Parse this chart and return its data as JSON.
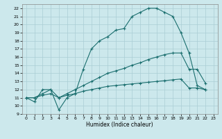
{
  "xlabel": "Humidex (Indice chaleur)",
  "bg_color": "#cce8ec",
  "grid_color": "#aacdd4",
  "line_color": "#1a6e6e",
  "xlim": [
    -0.5,
    23.5
  ],
  "ylim": [
    9,
    22.5
  ],
  "xticks": [
    0,
    1,
    2,
    3,
    4,
    5,
    6,
    7,
    8,
    9,
    10,
    11,
    12,
    13,
    14,
    15,
    16,
    17,
    18,
    19,
    20,
    21,
    22,
    23
  ],
  "yticks": [
    9,
    10,
    11,
    12,
    13,
    14,
    15,
    16,
    17,
    18,
    19,
    20,
    21,
    22
  ],
  "curve1_x": [
    0,
    1,
    2,
    3,
    4,
    5,
    6,
    7,
    8,
    9,
    10,
    11,
    12,
    13,
    14,
    15,
    16,
    17,
    18,
    19,
    20,
    21,
    22
  ],
  "curve1_y": [
    11,
    10.5,
    12,
    12,
    9.5,
    11,
    11.5,
    14.5,
    17,
    18,
    18.5,
    19.3,
    19.5,
    21,
    21.5,
    22,
    22,
    21.5,
    21,
    19,
    16.5,
    12.5,
    12
  ],
  "curve2_x": [
    0,
    1,
    2,
    3,
    4,
    5,
    6,
    7,
    8,
    9,
    10,
    11,
    12,
    13,
    14,
    15,
    16,
    17,
    18,
    19,
    20,
    21,
    22
  ],
  "curve2_y": [
    11,
    11,
    11.5,
    12,
    11,
    11.5,
    12,
    12.5,
    13,
    13.5,
    14,
    14.3,
    14.6,
    15,
    15.3,
    15.7,
    16,
    16.3,
    16.5,
    16.5,
    14.5,
    14.5,
    12.8
  ],
  "curve3_x": [
    0,
    1,
    2,
    3,
    4,
    5,
    6,
    7,
    8,
    9,
    10,
    11,
    12,
    13,
    14,
    15,
    16,
    17,
    18,
    19,
    20,
    21,
    22
  ],
  "curve3_y": [
    11,
    11,
    11.3,
    11.5,
    11,
    11.3,
    11.5,
    11.8,
    12,
    12.2,
    12.4,
    12.5,
    12.6,
    12.7,
    12.8,
    12.9,
    13,
    13.1,
    13.2,
    13.3,
    12.2,
    12.2,
    12
  ]
}
